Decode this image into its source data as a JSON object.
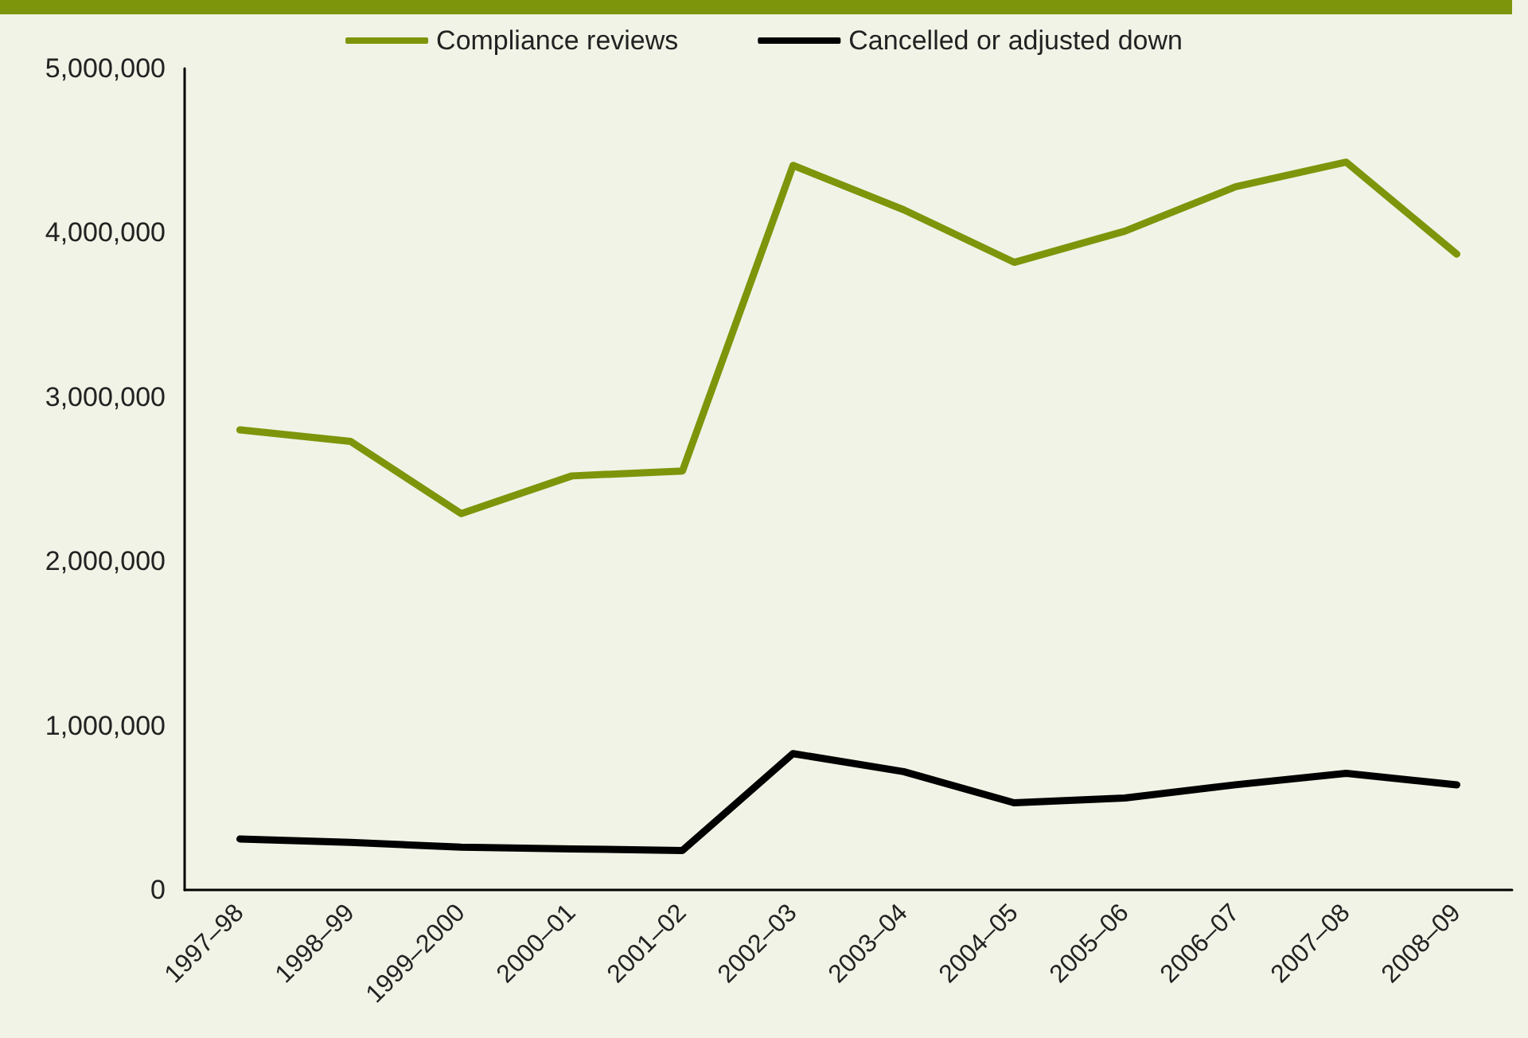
{
  "chart_data": {
    "type": "line",
    "categories": [
      "1997–98",
      "1998–99",
      "1999–2000",
      "2000–01",
      "2001–02",
      "2002–03",
      "2003–04",
      "2004–05",
      "2005–06",
      "2006–07",
      "2007–08",
      "2008–09"
    ],
    "series": [
      {
        "name": "Compliance reviews",
        "color": "#7d950a",
        "values": [
          2800000,
          2730000,
          2290000,
          2520000,
          2550000,
          4410000,
          4140000,
          3820000,
          4010000,
          4280000,
          4430000,
          3870000
        ]
      },
      {
        "name": "Cancelled or adjusted down",
        "color": "#000000",
        "values": [
          310000,
          290000,
          260000,
          250000,
          240000,
          830000,
          720000,
          530000,
          560000,
          640000,
          710000,
          640000
        ]
      }
    ],
    "ylim": [
      0,
      5000000
    ],
    "yticks": [
      0,
      {
        "value": 1000000,
        "label": "1,000,000"
      },
      {
        "value": 2000000,
        "label": "2,000,000"
      },
      {
        "value": 3000000,
        "label": "3,000,000"
      },
      {
        "value": 4000000,
        "label": "4,000,000"
      },
      {
        "value": 5000000,
        "label": "5,000,000"
      }
    ],
    "grid": false,
    "legend": "top",
    "marker": "none",
    "line_style": "solid"
  }
}
